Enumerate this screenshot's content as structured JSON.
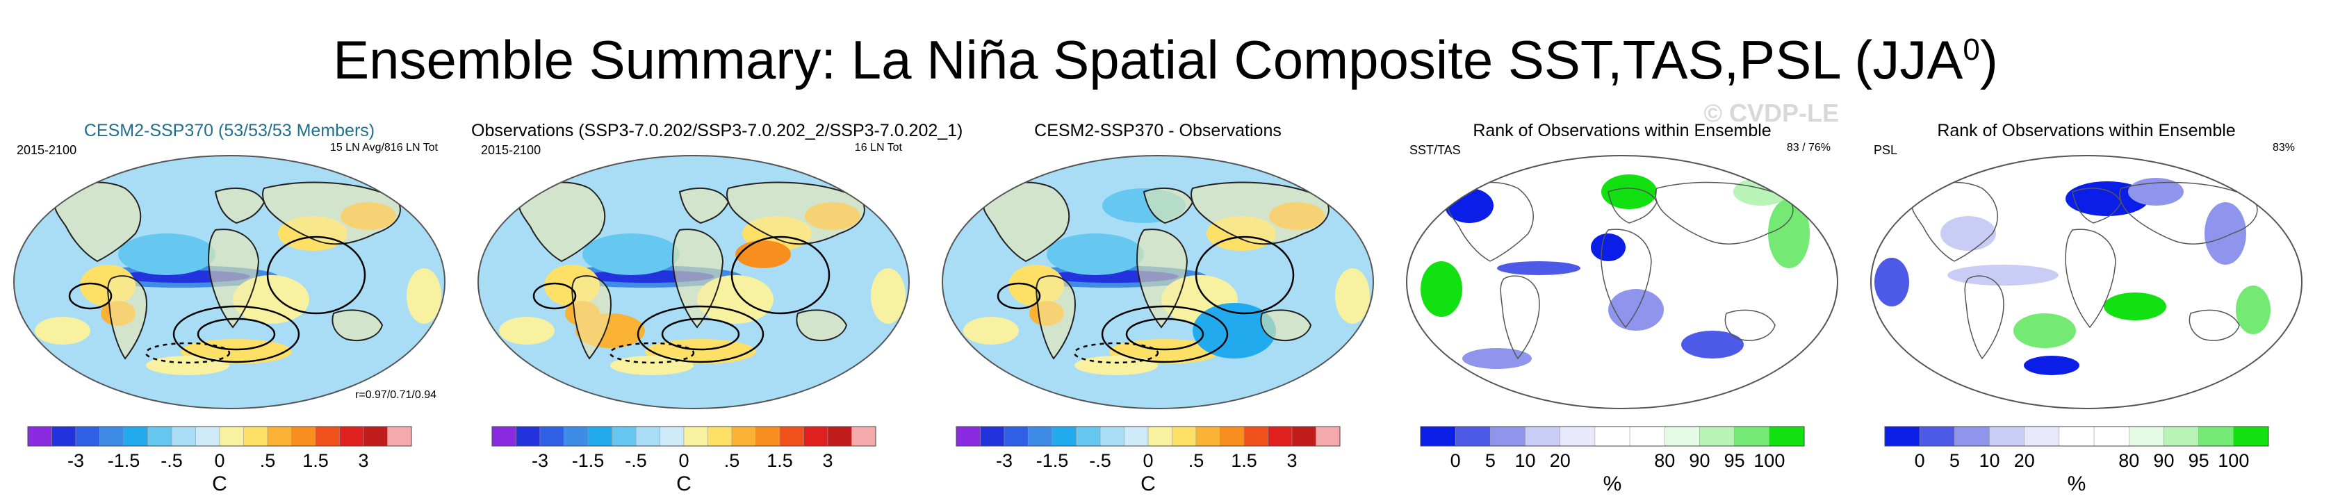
{
  "title": {
    "main": "Ensemble Summary: La Niña Spatial Composite SST,TAS,PSL (JJA",
    "season_sup": "0",
    "close": ")"
  },
  "watermark": "© CVDP-LE",
  "colors": {
    "sst_scale": [
      "#8a2be2",
      "#2233dd",
      "#3060e6",
      "#3e8ce6",
      "#22aaee",
      "#66c7f0",
      "#a9dcf5",
      "#cfeaf8",
      "#f7f1a0",
      "#ffe066",
      "#f9b233",
      "#f78e1e",
      "#f0501a",
      "#e01f1f",
      "#c21d1d",
      "#f4aaaa"
    ],
    "rank_scale": [
      "#0a1ee8",
      "#4d5ae8",
      "#8f95ec",
      "#c9ccf5",
      "#e8e9fb",
      "#ffffff",
      "#ffffff",
      "#e5fbe5",
      "#b8f3b8",
      "#74ea74",
      "#11e011"
    ],
    "land_sst": "#f4ecaa",
    "ocean_base": "#a9dcf5"
  },
  "panels": [
    {
      "id": "ensemble",
      "title": "CESM2-SSP370 (53/53/53 Members)",
      "title_style": "teal",
      "left_label": "2015-2100",
      "right_label": "15 LN Avg/816 LN Tot",
      "corr_label": "r=0.97/0.71/0.94",
      "type": "sst",
      "colorbar": {
        "labels": [
          "-3",
          "-1.5",
          "-.5",
          "0",
          ".5",
          "1.5",
          "3"
        ],
        "unit": "C"
      }
    },
    {
      "id": "observations",
      "title": "Observations (SSP3-7.0.202/SSP3-7.0.202_2/SSP3-7.0.202_1)",
      "title_style": "plain",
      "left_label": "2015-2100",
      "right_label": "16 LN Tot",
      "corr_label": "",
      "type": "sst",
      "colorbar": {
        "labels": [
          "-3",
          "-1.5",
          "-.5",
          "0",
          ".5",
          "1.5",
          "3"
        ],
        "unit": "C"
      }
    },
    {
      "id": "difference",
      "title": "CESM2-SSP370 - Observations",
      "title_style": "plain",
      "left_label": "",
      "right_label": "",
      "corr_label": "",
      "type": "sst",
      "colorbar": {
        "labels": [
          "-3",
          "-1.5",
          "-.5",
          "0",
          ".5",
          "1.5",
          "3"
        ],
        "unit": "C"
      }
    },
    {
      "id": "rank-sst-tas",
      "title": "Rank of Observations within Ensemble",
      "title_style": "plain",
      "left_label": "SST/TAS",
      "right_label": "83 /  76%",
      "corr_label": "",
      "type": "rank",
      "colorbar": {
        "labels": [
          "0",
          "5",
          "10",
          "20",
          "80",
          "90",
          "95",
          "100"
        ],
        "unit": "%"
      }
    },
    {
      "id": "rank-psl",
      "title": "Rank of Observations within Ensemble",
      "title_style": "plain",
      "left_label": "PSL",
      "right_label": "83%",
      "corr_label": "",
      "type": "rank",
      "colorbar": {
        "labels": [
          "0",
          "5",
          "10",
          "20",
          "80",
          "90",
          "95",
          "100"
        ],
        "unit": "%"
      }
    }
  ]
}
